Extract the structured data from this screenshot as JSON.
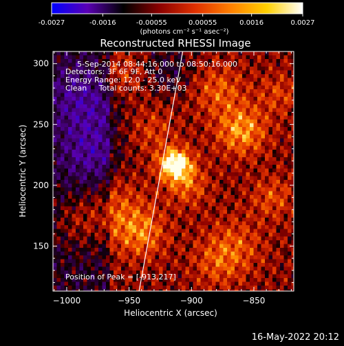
{
  "colorbar": {
    "tick_labels": [
      "-0.0027",
      "-0.0016",
      "-0.00055",
      "0.00055",
      "0.0016",
      "0.0027"
    ],
    "tick_values": [
      -0.0027,
      -0.0016,
      -0.00055,
      0.00055,
      0.0016,
      0.0027
    ],
    "range": [
      -0.0027,
      0.0027
    ],
    "units_label": "(photons cm⁻² s⁻¹ asec⁻²)",
    "colors": [
      "#0000ff",
      "#5a00b4",
      "#000000",
      "#8a0000",
      "#e03000",
      "#ff8000",
      "#ffd000",
      "#ffffff"
    ]
  },
  "title": "Reconstructed RHESSI Image",
  "info": {
    "time_range": "5-Sep-2014 08:44:16.000 to 08:50:16.000",
    "detectors": "Detectors: 3F 6F 9F, Att 0",
    "energy_range": "Energy Range: 12.0 - 25.0 keV",
    "clean": "Clean     Total counts: 3.30E+03",
    "peak": "Position of Peak = [-913,217]"
  },
  "timestamp": "16-May-2022 20:12",
  "chart_data": {
    "type": "heatmap",
    "title": "Reconstructed RHESSI Image",
    "xlabel": "Heliocentric X (arcsec)",
    "ylabel": "Heliocentric Y (arcsec)",
    "xlim": [
      -1011,
      -818
    ],
    "ylim": [
      113,
      310
    ],
    "x_ticks": [
      -1000,
      -950,
      -900,
      -850
    ],
    "x_tick_labels": [
      "−1000",
      "−950",
      "−900",
      "−850"
    ],
    "y_ticks": [
      150,
      200,
      250,
      300
    ],
    "y_tick_labels": [
      "150",
      "200",
      "250",
      "300"
    ],
    "peak_position": [
      -913,
      217
    ],
    "limb_line": [
      [
        -942,
        113
      ],
      [
        -907,
        310
      ]
    ],
    "sources": [
      {
        "x": -913,
        "y": 217,
        "amp": 1.0,
        "sigma": 9
      },
      {
        "x": -903,
        "y": 200,
        "amp": 0.35,
        "sigma": 12
      },
      {
        "x": -860,
        "y": 245,
        "amp": 0.55,
        "sigma": 14
      },
      {
        "x": -878,
        "y": 278,
        "amp": 0.35,
        "sigma": 14
      },
      {
        "x": -932,
        "y": 245,
        "amp": 0.25,
        "sigma": 14
      },
      {
        "x": -960,
        "y": 180,
        "amp": 0.3,
        "sigma": 18
      },
      {
        "x": -940,
        "y": 160,
        "amp": 0.4,
        "sigma": 14
      },
      {
        "x": -990,
        "y": 170,
        "amp": 0.25,
        "sigma": 14
      },
      {
        "x": -865,
        "y": 150,
        "amp": 0.3,
        "sigma": 16
      },
      {
        "x": -880,
        "y": 135,
        "amp": 0.25,
        "sigma": 14
      },
      {
        "x": -955,
        "y": 290,
        "amp": 0.3,
        "sigma": 14
      },
      {
        "x": -980,
        "y": 225,
        "amp": -0.35,
        "sigma": 18
      },
      {
        "x": -985,
        "y": 270,
        "amp": -0.4,
        "sigma": 22
      },
      {
        "x": -920,
        "y": 295,
        "amp": -0.3,
        "sigma": 14
      },
      {
        "x": -835,
        "y": 190,
        "amp": 0.3,
        "sigma": 12
      },
      {
        "x": -830,
        "y": 275,
        "amp": 0.25,
        "sigma": 12
      }
    ]
  }
}
